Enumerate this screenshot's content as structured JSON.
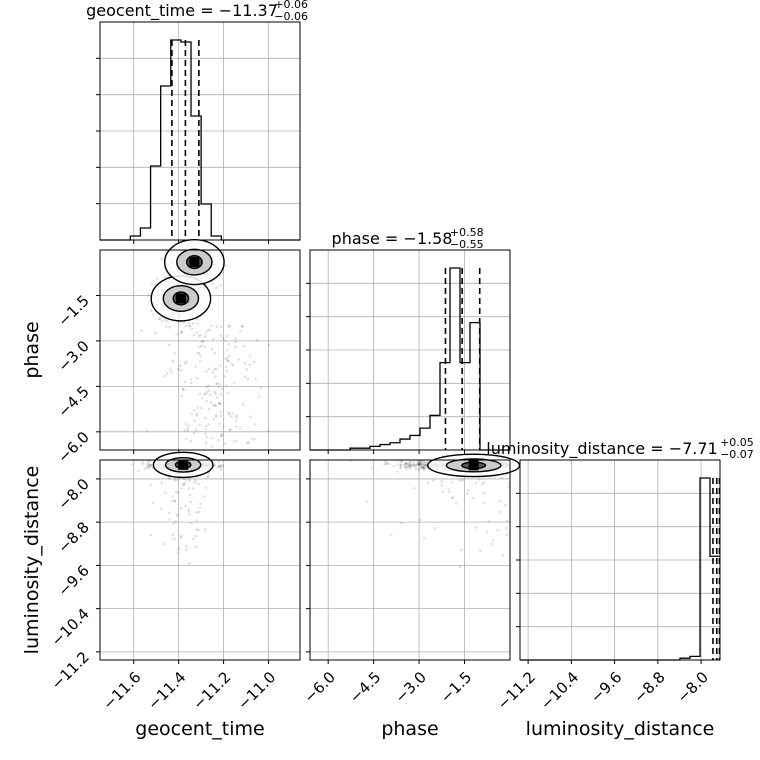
{
  "chart_data": {
    "type": "corner",
    "parameters": [
      "geocent_time",
      "phase",
      "luminosity_distance"
    ],
    "titles": [
      {
        "param": "geocent_time",
        "label": "geocent_time = −11.37",
        "upper": "+0.06",
        "lower": "−0.06"
      },
      {
        "param": "phase",
        "label": "phase = −1.58",
        "upper": "+0.58",
        "lower": "−0.55"
      },
      {
        "param": "luminosity_distance",
        "label": "luminosity_distance = −7.71",
        "upper": "+0.05",
        "lower": "−0.07"
      }
    ],
    "axis_labels": {
      "geocent_time": "geocent_time",
      "phase": "phase",
      "luminosity_distance": "luminosity_distance"
    },
    "ranges": {
      "geocent_time": [
        -11.75,
        -10.86
      ],
      "phase": [
        -6.6,
        0.0
      ],
      "luminosity_distance": [
        -11.35,
        -7.65
      ]
    },
    "ticks": {
      "geocent_time": {
        "values": [
          -11.6,
          -11.4,
          -11.2,
          -11.0
        ],
        "labels": [
          "−11.6",
          "−11.4",
          "−11.2",
          "−11.0"
        ]
      },
      "phase": {
        "values": [
          -6.0,
          -4.5,
          -3.0,
          -1.5
        ],
        "labels": [
          "−6.0",
          "−4.5",
          "−3.0",
          "−1.5"
        ]
      },
      "luminosity_distance": {
        "values": [
          -11.2,
          -10.4,
          -9.6,
          -8.8,
          -8.0
        ],
        "labels": [
          "−11.2",
          "−10.4",
          "−9.6",
          "−8.8",
          "−8.0"
        ]
      }
    },
    "quantiles": {
      "geocent_time": [
        -11.43,
        -11.37,
        -11.31
      ],
      "phase": [
        -2.13,
        -1.58,
        -1.0
      ],
      "luminosity_distance": [
        -7.78,
        -7.71,
        -7.66
      ]
    },
    "histograms": {
      "geocent_time": {
        "edges": [
          -11.75,
          -11.705,
          -11.66,
          -11.615,
          -11.57,
          -11.525,
          -11.48,
          -11.435,
          -11.39,
          -11.345,
          -11.3,
          -11.255,
          -11.21,
          -11.165,
          -11.12,
          -11.075,
          -11.03,
          -10.985,
          -10.94,
          -10.895,
          -10.86
        ],
        "counts": [
          0,
          0,
          0,
          2,
          6,
          37,
          77,
          100,
          99,
          62,
          18,
          2,
          0,
          0,
          0,
          0,
          0,
          0,
          0,
          0
        ]
      },
      "phase": {
        "edges": [
          -6.6,
          -6.27,
          -5.94,
          -5.61,
          -5.28,
          -4.95,
          -4.62,
          -4.29,
          -3.96,
          -3.63,
          -3.3,
          -2.97,
          -2.64,
          -2.31,
          -1.98,
          -1.65,
          -1.32,
          -0.99,
          -0.66,
          -0.33,
          0.0
        ],
        "counts": [
          0,
          0,
          0,
          0,
          1,
          1,
          2,
          3,
          4,
          6,
          8,
          12,
          19,
          48,
          100,
          48,
          70,
          0,
          0,
          0
        ]
      },
      "luminosity_distance": {
        "edges": [
          -11.35,
          -11.165,
          -10.98,
          -10.795,
          -10.61,
          -10.425,
          -10.24,
          -10.055,
          -9.87,
          -9.685,
          -9.5,
          -9.315,
          -9.13,
          -8.945,
          -8.76,
          -8.575,
          -8.39,
          -8.205,
          -8.02,
          -7.835,
          -7.65
        ],
        "counts": [
          0,
          0,
          0,
          0,
          0,
          0,
          0,
          0,
          0,
          0,
          0,
          0,
          0,
          0,
          0,
          0,
          1,
          2,
          100,
          57
        ]
      }
    },
    "density_centers": {
      "phase_vs_geocent_time": [
        {
          "x": -11.39,
          "y": -1.6
        },
        {
          "x": -11.33,
          "y": -0.4
        }
      ],
      "luminosity_distance_vs_geocent_time": [
        {
          "x": -11.38,
          "y": -7.74
        }
      ],
      "luminosity_distance_vs_phase": [
        {
          "x": -1.2,
          "y": -7.75
        }
      ]
    }
  }
}
